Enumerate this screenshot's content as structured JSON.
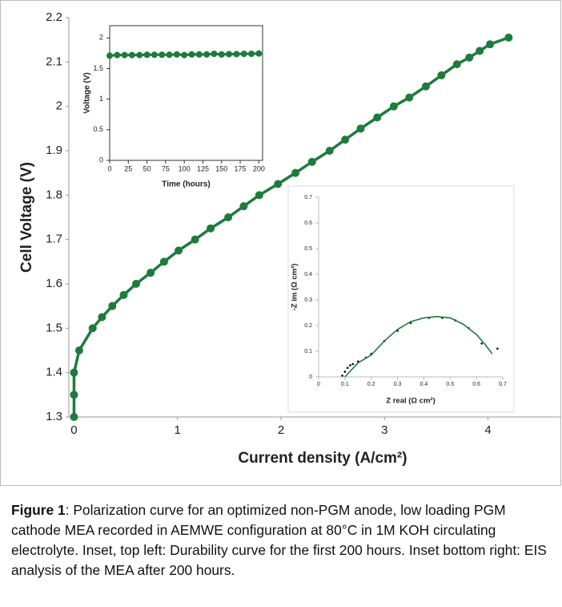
{
  "chart_data": [
    {
      "type": "line",
      "xlabel": "Current density (A/cm²)",
      "ylabel": "Cell Voltage (V)",
      "xlim": [
        -0.05,
        4.7
      ],
      "ylim": [
        1.3,
        2.2
      ],
      "xticks": [
        0,
        1,
        2,
        3,
        4
      ],
      "yticks": [
        1.3,
        1.4,
        1.5,
        1.6,
        1.7,
        1.8,
        1.9,
        2,
        2.1,
        2.2
      ],
      "series": [
        {
          "type": "line",
          "color": "#1e7b3b",
          "x": [
            0,
            0,
            0,
            0.05,
            0.18,
            0.27,
            0.37,
            0.48,
            0.6,
            0.74,
            0.87,
            1.01,
            1.17,
            1.32,
            1.49,
            1.64,
            1.79,
            1.97,
            2.14,
            2.3,
            2.47,
            2.62,
            2.77,
            2.93,
            3.09,
            3.24,
            3.4,
            3.55,
            3.7,
            3.82,
            3.92,
            4.02,
            4.2
          ],
          "values": [
            1.3,
            1.35,
            1.4,
            1.45,
            1.5,
            1.525,
            1.55,
            1.575,
            1.6,
            1.625,
            1.65,
            1.675,
            1.7,
            1.725,
            1.75,
            1.775,
            1.8,
            1.825,
            1.85,
            1.875,
            1.9,
            1.925,
            1.95,
            1.975,
            2.0,
            2.02,
            2.045,
            2.07,
            2.095,
            2.11,
            2.125,
            2.14,
            2.155
          ]
        }
      ]
    },
    {
      "type": "line",
      "xlabel": "Time (hours)",
      "ylabel": "Voltage (V)",
      "xlim": [
        0,
        205
      ],
      "ylim": [
        0,
        2.2
      ],
      "xticks": [
        0,
        25,
        50,
        75,
        100,
        125,
        150,
        175,
        200
      ],
      "yticks": [
        0,
        0.5,
        1,
        1.5,
        2
      ],
      "series": [
        {
          "type": "line",
          "color": "#1e7b3b",
          "x": [
            0,
            10,
            20,
            30,
            40,
            50,
            60,
            70,
            80,
            90,
            100,
            110,
            120,
            130,
            140,
            150,
            160,
            170,
            180,
            190,
            200
          ],
          "values": [
            1.71,
            1.72,
            1.72,
            1.72,
            1.72,
            1.725,
            1.725,
            1.725,
            1.725,
            1.73,
            1.72,
            1.73,
            1.73,
            1.73,
            1.74,
            1.73,
            1.735,
            1.735,
            1.74,
            1.74,
            1.745
          ]
        }
      ]
    },
    {
      "type": "scatter",
      "xlabel": "Z real (Ω cm²)",
      "ylabel": "-Z im (Ω cm²)",
      "xlim": [
        0,
        0.7
      ],
      "ylim": [
        0,
        0.7
      ],
      "xticks": [
        0,
        0.1,
        0.2,
        0.3,
        0.4,
        0.5,
        0.6,
        0.7
      ],
      "yticks": [
        0,
        0.1,
        0.2,
        0.3,
        0.4,
        0.5,
        0.6,
        0.7
      ],
      "series": [
        {
          "type": "scatter",
          "color": "#000000",
          "x": [
            0.09,
            0.1,
            0.11,
            0.12,
            0.13,
            0.15,
            0.18,
            0.2,
            0.25,
            0.3,
            0.35,
            0.42,
            0.47,
            0.52,
            0.57,
            0.62,
            0.68
          ],
          "values": [
            0.005,
            0.02,
            0.035,
            0.045,
            0.05,
            0.06,
            0.075,
            0.09,
            0.14,
            0.18,
            0.21,
            0.23,
            0.23,
            0.22,
            0.19,
            0.13,
            0.11
          ]
        },
        {
          "type": "line",
          "color": "#1e7b3b",
          "x": [
            0.1,
            0.15,
            0.2,
            0.25,
            0.3,
            0.35,
            0.4,
            0.45,
            0.5,
            0.55,
            0.6,
            0.63,
            0.66
          ],
          "values": [
            0,
            0.055,
            0.085,
            0.14,
            0.185,
            0.215,
            0.23,
            0.235,
            0.23,
            0.205,
            0.165,
            0.13,
            0.09
          ]
        }
      ]
    }
  ],
  "caption": {
    "label": "Figure 1",
    "text": ": Polarization curve for an optimized non-PGM anode, low loading PGM cathode MEA recorded in AEMWE configuration at 80°C in 1M KOH circulating electrolyte. Inset, top left: Durability curve for the first 200 hours. Inset bottom right: EIS analysis of the MEA after 200 hours."
  }
}
